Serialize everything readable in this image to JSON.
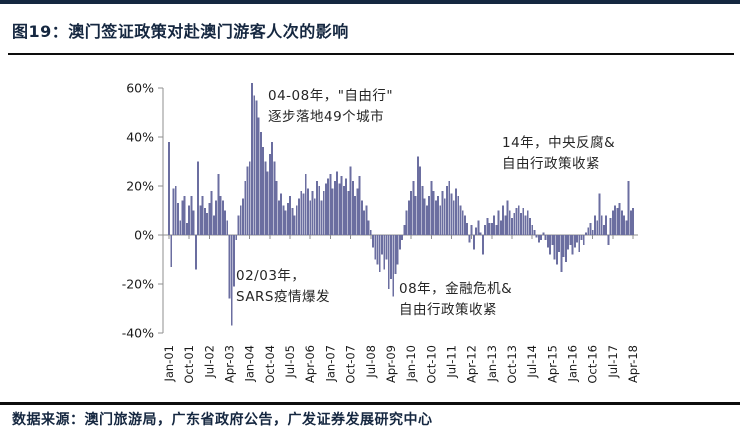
{
  "header": {
    "title": "图19：澳门签证政策对赴澳门游客人次的影响"
  },
  "footer": {
    "source": "数据来源：澳门旅游局，广东省政府公告，广发证券发展研究中心"
  },
  "chart_data": {
    "type": "bar",
    "title": "图19：澳门签证政策对赴澳门游客人次的影响",
    "xlabel": "",
    "ylabel": "",
    "unit": "%",
    "ylim": [
      -40,
      60
    ],
    "y_ticks": [
      60,
      40,
      20,
      0,
      -20,
      -40
    ],
    "y_tick_labels": [
      "60%",
      "40%",
      "20%",
      "0%",
      "-20%",
      "-40%"
    ],
    "x_start": "Jan-01",
    "x_end": "Apr-18",
    "x_tick_interval_months": 9,
    "x_tick_labels": [
      "Jan-01",
      "Oct-01",
      "Jul-02",
      "Apr-03",
      "Jan-04",
      "Oct-04",
      "Jul-05",
      "Apr-06",
      "Jan-07",
      "Oct-07",
      "Jul-08",
      "Apr-09",
      "Jan-10",
      "Oct-10",
      "Jul-11",
      "Apr-12",
      "Jan-13",
      "Oct-13",
      "Jul-14",
      "Apr-15",
      "Jan-16",
      "Oct-16",
      "Jul-17",
      "Apr-18"
    ],
    "bar_color": "#6b6ea0",
    "axis_color": "#8f8f8f",
    "tick_label_color": "#1a1a1a",
    "legend": "off",
    "grid": "off",
    "values": [
      38,
      -13,
      19,
      20,
      13,
      6,
      14,
      16,
      5,
      12,
      16,
      10,
      -14,
      30,
      12,
      16,
      11,
      9,
      13,
      18,
      8,
      14,
      25,
      16,
      14,
      10,
      6,
      -26,
      -37,
      -21,
      -2,
      8,
      12,
      15,
      22,
      28,
      30,
      62,
      57,
      55,
      48,
      42,
      36,
      30,
      26,
      33,
      38,
      30,
      22,
      14,
      17,
      12,
      10,
      13,
      16,
      11,
      8,
      12,
      15,
      18,
      17,
      25,
      19,
      14,
      18,
      15,
      22,
      20,
      14,
      18,
      21,
      23,
      25,
      19,
      22,
      26,
      21,
      24,
      20,
      23,
      18,
      28,
      22,
      16,
      19,
      24,
      14,
      10,
      12,
      6,
      2,
      -5,
      -10,
      -12,
      -15,
      -8,
      -14,
      -10,
      -22,
      -18,
      -25,
      -16,
      -12,
      -6,
      -2,
      4,
      10,
      14,
      18,
      22,
      16,
      32,
      28,
      20,
      15,
      12,
      16,
      22,
      18,
      14,
      16,
      12,
      18,
      15,
      20,
      22,
      17,
      14,
      19,
      16,
      12,
      10,
      8,
      5,
      -3,
      4,
      -6,
      3,
      6,
      1,
      -8,
      4,
      7,
      5,
      5,
      8,
      4,
      10,
      6,
      12,
      8,
      14,
      10,
      7,
      9,
      11,
      12,
      9,
      11,
      8,
      10,
      7,
      4,
      2,
      -1,
      -3,
      -2,
      1,
      -2,
      -5,
      -8,
      -4,
      -10,
      -12,
      -7,
      -15,
      -9,
      -11,
      -6,
      -4,
      -8,
      -5,
      -3,
      -7,
      -2,
      -4,
      1,
      3,
      5,
      2,
      8,
      6,
      17,
      8,
      4,
      8,
      -4,
      7,
      10,
      12,
      11,
      13,
      10,
      8,
      6,
      22,
      10,
      11
    ],
    "annotations": [
      {
        "id": "free-travel",
        "text": "04-08年，\"自由行\"\n逐步落地49个城市"
      },
      {
        "id": "anticorruption",
        "text": "14年，中央反腐&\n自由行政策收紧"
      },
      {
        "id": "sars",
        "text": "02/03年，\nSARS疫情爆发"
      },
      {
        "id": "financial-crisis",
        "text": "08年，金融危机&\n自由行政策收紧"
      }
    ]
  }
}
